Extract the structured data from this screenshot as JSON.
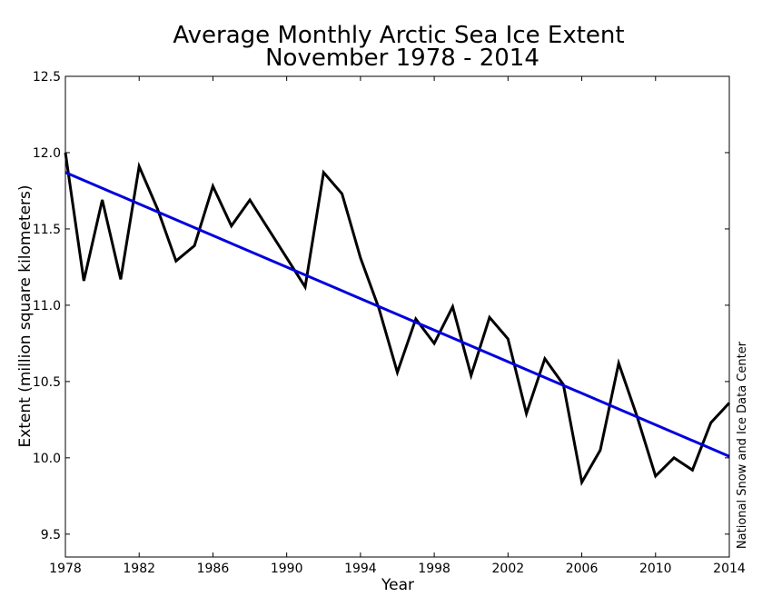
{
  "chart_data": {
    "type": "line",
    "title": "Average Monthly Arctic Sea Ice Extent",
    "subtitle": "November 1978 - 2014",
    "xlabel": "Year",
    "ylabel": "Extent (million square kilometers)",
    "credit": "National Snow and Ice Data Center",
    "xlim": [
      1978,
      2014
    ],
    "ylim": [
      9.35,
      12.5
    ],
    "xticks": [
      1978,
      1982,
      1986,
      1990,
      1994,
      1998,
      2002,
      2006,
      2010,
      2014
    ],
    "yticks": [
      9.5,
      10.0,
      10.5,
      11.0,
      11.5,
      12.0,
      12.5
    ],
    "x_tick_labels": [
      "1978",
      "1982",
      "1986",
      "1990",
      "1994",
      "1998",
      "2002",
      "2006",
      "2010",
      "2014"
    ],
    "y_tick_labels": [
      "9.5",
      "10.0",
      "10.5",
      "11.0",
      "11.5",
      "12.0",
      "12.5"
    ],
    "grid": false,
    "series": [
      {
        "color": "#000000",
        "x": [
          1978,
          1979,
          1980,
          1981,
          1982,
          1983,
          1984,
          1985,
          1986,
          1987,
          1988,
          1989,
          1990,
          1991,
          1992,
          1993,
          1994,
          1995,
          1996,
          1997,
          1998,
          1999,
          2000,
          2001,
          2002,
          2003,
          2004,
          2005,
          2006,
          2007,
          2008,
          2009,
          2010,
          2011,
          2012,
          2013,
          2014
        ],
        "values": [
          12.0,
          11.16,
          11.69,
          11.17,
          11.91,
          11.63,
          11.29,
          11.39,
          11.78,
          11.52,
          11.69,
          11.5,
          11.31,
          11.12,
          11.87,
          11.73,
          11.31,
          10.98,
          10.56,
          10.91,
          10.75,
          10.99,
          10.54,
          10.92,
          10.78,
          10.29,
          10.65,
          10.48,
          9.84,
          10.05,
          10.62,
          10.27,
          9.88,
          10.0,
          9.92,
          10.23,
          10.36
        ]
      },
      {
        "color": "#0000dd",
        "x": [
          1978,
          2014
        ],
        "values": [
          11.87,
          10.01
        ]
      }
    ]
  }
}
